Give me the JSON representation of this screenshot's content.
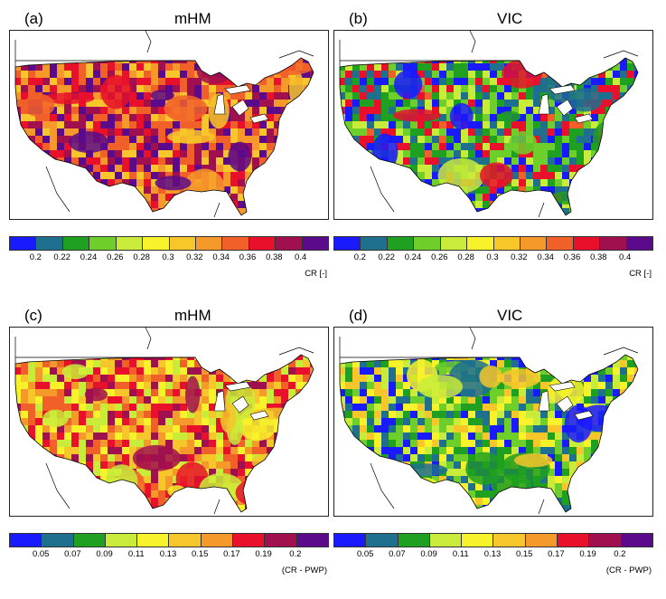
{
  "panels": [
    {
      "tag": "(a)",
      "title": "mHM",
      "variable": "cr",
      "palette": "warm"
    },
    {
      "tag": "(b)",
      "title": "VIC",
      "variable": "cr",
      "palette": "cool"
    },
    {
      "tag": "(c)",
      "title": "mHM",
      "variable": "cr_pwp",
      "palette": "mid"
    },
    {
      "tag": "(d)",
      "title": "VIC",
      "variable": "cr_pwp",
      "palette": "coolmid"
    }
  ],
  "colorbars": {
    "cr": {
      "ticks": [
        "0.2",
        "0.22",
        "0.24",
        "0.26",
        "0.28",
        "0.3",
        "0.32",
        "0.34",
        "0.36",
        "0.38",
        "0.4"
      ],
      "unit": "CR [-]"
    },
    "cr_pwp": {
      "ticks": [
        "0.05",
        "0.07",
        "0.09",
        "0.11",
        "0.13",
        "0.15",
        "0.17",
        "0.19",
        "0.2"
      ],
      "unit": "(CR - PWP)"
    }
  },
  "colors": {
    "scale": [
      "#1a1aff",
      "#1f6f8f",
      "#20a020",
      "#6fcf2a",
      "#c9ec3a",
      "#f7f22a",
      "#f6c62a",
      "#f59a2a",
      "#f2602a",
      "#e8102a",
      "#a0104f",
      "#5a0a8a"
    ],
    "background": "#ffffff",
    "coast": "#000000"
  }
}
